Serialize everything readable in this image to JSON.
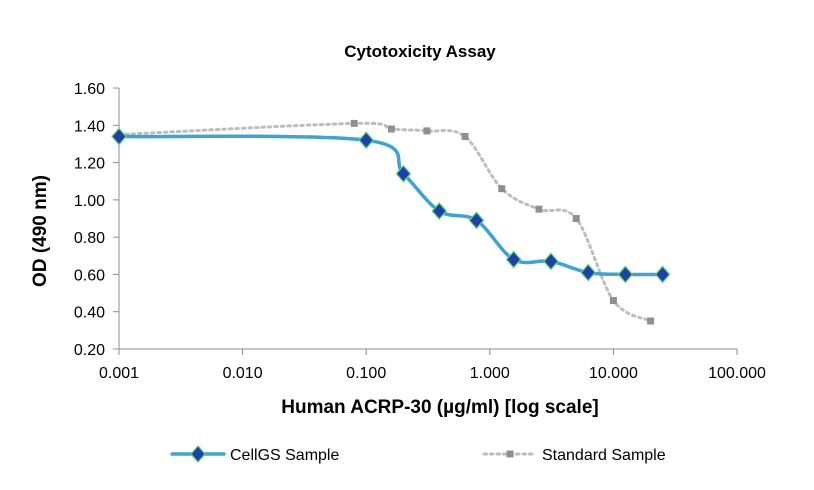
{
  "chart_data": {
    "type": "scatter",
    "title": "Cytotoxicity Assay",
    "xlabel": "Human ACRP-30 (µg/ml) [log scale]",
    "ylabel": "OD (490 nm)",
    "x_scale": "log",
    "xlim": [
      0.001,
      100
    ],
    "ylim": [
      0.2,
      1.6
    ],
    "x_ticks": [
      {
        "value": 0.001,
        "label": "0.001"
      },
      {
        "value": 0.01,
        "label": "0.010"
      },
      {
        "value": 0.1,
        "label": "0.100"
      },
      {
        "value": 1,
        "label": "1.000"
      },
      {
        "value": 10,
        "label": "10.000"
      },
      {
        "value": 100,
        "label": "100.000"
      }
    ],
    "y_ticks": [
      {
        "value": 0.2,
        "label": "0.20"
      },
      {
        "value": 0.4,
        "label": "0.40"
      },
      {
        "value": 0.6,
        "label": "0.60"
      },
      {
        "value": 0.8,
        "label": "0.80"
      },
      {
        "value": 1.0,
        "label": "1.00"
      },
      {
        "value": 1.2,
        "label": "1.20"
      },
      {
        "value": 1.4,
        "label": "1.40"
      },
      {
        "value": 1.6,
        "label": "1.60"
      }
    ],
    "grid": false,
    "legend_position": "bottom",
    "series": [
      {
        "name": "CellGS Sample",
        "color": "#3ba3d8",
        "marker": "diamond",
        "marker_color": "#1f3fae",
        "line_style": "solid-smooth",
        "x": [
          0.001,
          0.1,
          0.2,
          0.39,
          0.78,
          1.56,
          3.125,
          6.25,
          12.5,
          25
        ],
        "y": [
          1.34,
          1.32,
          1.14,
          0.94,
          0.89,
          0.68,
          0.67,
          0.61,
          0.6,
          0.6
        ]
      },
      {
        "name": "Standard Sample",
        "color": "#bdbdbd",
        "marker": "square",
        "marker_color": "#8f8f8f",
        "line_style": "dotted-smooth",
        "x": [
          0.001,
          0.08,
          0.16,
          0.31,
          0.63,
          1.25,
          2.5,
          5,
          10,
          20
        ],
        "y": [
          1.35,
          1.41,
          1.38,
          1.37,
          1.34,
          1.06,
          0.95,
          0.9,
          0.46,
          0.35
        ]
      }
    ]
  }
}
